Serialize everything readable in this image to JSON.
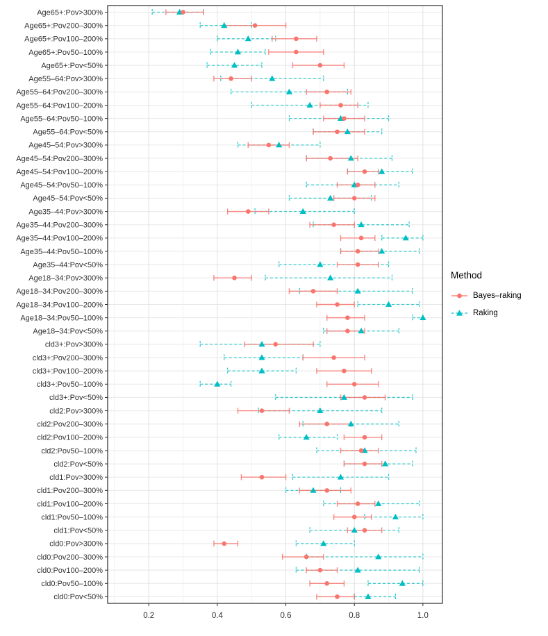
{
  "chart_data": {
    "type": "scatter",
    "subtype": "interval-dot-plot",
    "title": "",
    "xlabel": "",
    "ylabel": "",
    "x_ticks": [
      0.2,
      0.4,
      0.6,
      0.8,
      1.0
    ],
    "x_tick_labels": [
      "0.2",
      "0.4",
      "0.6",
      "0.8",
      "1.0"
    ],
    "x_minor_ticks": [
      0.1,
      0.3,
      0.5,
      0.7,
      0.9
    ],
    "xlim": [
      0.08,
      1.057
    ],
    "grid": true,
    "panel_border": true,
    "legend": {
      "title": "Method",
      "position": "right"
    },
    "series": [
      {
        "name": "Bayes–raking",
        "marker": "circle",
        "linestyle": "solid",
        "color": "#F8766D"
      },
      {
        "name": "Raking",
        "marker": "triangle",
        "linestyle": "dashed",
        "color": "#00BFC4"
      }
    ],
    "interval_format": "[estimate, lower, upper]",
    "rows": [
      {
        "label": "Age65+:Pov>300%",
        "bayes": [
          0.3,
          0.25,
          0.36
        ],
        "raking": [
          0.29,
          0.21,
          0.36
        ]
      },
      {
        "label": "Age65+:Pov200–300%",
        "bayes": [
          0.51,
          0.42,
          0.6
        ],
        "raking": [
          0.42,
          0.35,
          0.5
        ]
      },
      {
        "label": "Age65+:Pov100–200%",
        "bayes": [
          0.63,
          0.56,
          0.69
        ],
        "raking": [
          0.49,
          0.4,
          0.57
        ]
      },
      {
        "label": "Age65+:Pov50–100%",
        "bayes": [
          0.63,
          0.55,
          0.71
        ],
        "raking": [
          0.46,
          0.38,
          0.54
        ]
      },
      {
        "label": "Age65+:Pov<50%",
        "bayes": [
          0.7,
          0.62,
          0.77
        ],
        "raking": [
          0.45,
          0.37,
          0.53
        ]
      },
      {
        "label": "Age55–64:Pov>300%",
        "bayes": [
          0.44,
          0.39,
          0.5
        ],
        "raking": [
          0.56,
          0.41,
          0.71
        ]
      },
      {
        "label": "Age55–64:Pov200–300%",
        "bayes": [
          0.72,
          0.66,
          0.79
        ],
        "raking": [
          0.61,
          0.44,
          0.78
        ]
      },
      {
        "label": "Age55–64:Pov100–200%",
        "bayes": [
          0.76,
          0.7,
          0.81
        ],
        "raking": [
          0.67,
          0.5,
          0.84
        ]
      },
      {
        "label": "Age55–64:Pov50–100%",
        "bayes": [
          0.77,
          0.71,
          0.83
        ],
        "raking": [
          0.76,
          0.61,
          0.9
        ]
      },
      {
        "label": "Age55–64:Pov<50%",
        "bayes": [
          0.75,
          0.68,
          0.83
        ],
        "raking": [
          0.78,
          0.68,
          0.88
        ]
      },
      {
        "label": "Age45–54:Pov>300%",
        "bayes": [
          0.55,
          0.49,
          0.61
        ],
        "raking": [
          0.58,
          0.46,
          0.7
        ]
      },
      {
        "label": "Age45–54:Pov200–300%",
        "bayes": [
          0.73,
          0.66,
          0.81
        ],
        "raking": [
          0.79,
          0.66,
          0.91
        ]
      },
      {
        "label": "Age45–54:Pov100–200%",
        "bayes": [
          0.83,
          0.78,
          0.87
        ],
        "raking": [
          0.88,
          0.78,
          0.97
        ]
      },
      {
        "label": "Age45–54:Pov50–100%",
        "bayes": [
          0.81,
          0.75,
          0.86
        ],
        "raking": [
          0.8,
          0.66,
          0.93
        ]
      },
      {
        "label": "Age45–54:Pov<50%",
        "bayes": [
          0.8,
          0.74,
          0.86
        ],
        "raking": [
          0.73,
          0.61,
          0.85
        ]
      },
      {
        "label": "Age35–44:Pov>300%",
        "bayes": [
          0.49,
          0.43,
          0.55
        ],
        "raking": [
          0.65,
          0.51,
          0.8
        ]
      },
      {
        "label": "Age35–44:Pov200–300%",
        "bayes": [
          0.74,
          0.67,
          0.8
        ],
        "raking": [
          0.82,
          0.68,
          0.96
        ]
      },
      {
        "label": "Age35–44:Pov100–200%",
        "bayes": [
          0.82,
          0.76,
          0.86
        ],
        "raking": [
          0.95,
          0.88,
          1.0
        ]
      },
      {
        "label": "Age35–44:Pov50–100%",
        "bayes": [
          0.81,
          0.76,
          0.87
        ],
        "raking": [
          0.88,
          0.76,
          0.99
        ]
      },
      {
        "label": "Age35–44:Pov<50%",
        "bayes": [
          0.81,
          0.75,
          0.87
        ],
        "raking": [
          0.7,
          0.58,
          0.9
        ]
      },
      {
        "label": "Age18–34:Pov>300%",
        "bayes": [
          0.45,
          0.39,
          0.5
        ],
        "raking": [
          0.73,
          0.54,
          0.91
        ]
      },
      {
        "label": "Age18–34:Pov200–300%",
        "bayes": [
          0.68,
          0.61,
          0.75
        ],
        "raking": [
          0.81,
          0.64,
          0.97
        ]
      },
      {
        "label": "Age18–34:Pov100–200%",
        "bayes": [
          0.75,
          0.69,
          0.8
        ],
        "raking": [
          0.9,
          0.81,
          0.99
        ]
      },
      {
        "label": "Age18–34:Pov50–100%",
        "bayes": [
          0.78,
          0.72,
          0.83
        ],
        "raking": [
          1.0,
          0.97,
          1.0
        ]
      },
      {
        "label": "Age18–34:Pov<50%",
        "bayes": [
          0.78,
          0.72,
          0.83
        ],
        "raking": [
          0.82,
          0.71,
          0.93
        ]
      },
      {
        "label": "cld3+:Pov>300%",
        "bayes": [
          0.57,
          0.48,
          0.68
        ],
        "raking": [
          0.53,
          0.35,
          0.7
        ]
      },
      {
        "label": "cld3+:Pov200–300%",
        "bayes": [
          0.74,
          0.65,
          0.83
        ],
        "raking": [
          0.53,
          0.42,
          0.65
        ]
      },
      {
        "label": "cld3+:Pov100–200%",
        "bayes": [
          0.77,
          0.69,
          0.85
        ],
        "raking": [
          0.53,
          0.43,
          0.63
        ]
      },
      {
        "label": "cld3+:Pov50–100%",
        "bayes": [
          0.8,
          0.72,
          0.87
        ],
        "raking": [
          0.4,
          0.35,
          0.44
        ]
      },
      {
        "label": "cld3+:Pov<50%",
        "bayes": [
          0.83,
          0.76,
          0.89
        ],
        "raking": [
          0.77,
          0.57,
          0.97
        ]
      },
      {
        "label": "cld2:Pov>300%",
        "bayes": [
          0.53,
          0.46,
          0.61
        ],
        "raking": [
          0.7,
          0.52,
          0.88
        ]
      },
      {
        "label": "cld2:Pov200–300%",
        "bayes": [
          0.72,
          0.64,
          0.79
        ],
        "raking": [
          0.79,
          0.65,
          0.93
        ]
      },
      {
        "label": "cld2:Pov100–200%",
        "bayes": [
          0.83,
          0.77,
          0.88
        ],
        "raking": [
          0.66,
          0.58,
          0.75
        ]
      },
      {
        "label": "cld2:Pov50–100%",
        "bayes": [
          0.82,
          0.76,
          0.87
        ],
        "raking": [
          0.83,
          0.69,
          0.98
        ]
      },
      {
        "label": "cld2:Pov<50%",
        "bayes": [
          0.83,
          0.77,
          0.88
        ],
        "raking": [
          0.89,
          0.77,
          0.97
        ]
      },
      {
        "label": "cld1:Pov>300%",
        "bayes": [
          0.53,
          0.47,
          0.6
        ],
        "raking": [
          0.76,
          0.62,
          0.9
        ]
      },
      {
        "label": "cld1:Pov200–300%",
        "bayes": [
          0.72,
          0.64,
          0.79
        ],
        "raking": [
          0.68,
          0.6,
          0.76
        ]
      },
      {
        "label": "cld1:Pov100–200%",
        "bayes": [
          0.81,
          0.75,
          0.86
        ],
        "raking": [
          0.87,
          0.71,
          0.99
        ]
      },
      {
        "label": "cld1:Pov50–100%",
        "bayes": [
          0.8,
          0.74,
          0.85
        ],
        "raking": [
          0.92,
          0.83,
          1.0
        ]
      },
      {
        "label": "cld1:Pov<50%",
        "bayes": [
          0.83,
          0.78,
          0.88
        ],
        "raking": [
          0.8,
          0.67,
          0.93
        ]
      },
      {
        "label": "cld0:Pov>300%",
        "bayes": [
          0.42,
          0.39,
          0.46
        ],
        "raking": [
          0.71,
          0.63,
          0.8
        ]
      },
      {
        "label": "cld0:Pov200–300%",
        "bayes": [
          0.66,
          0.59,
          0.71
        ],
        "raking": [
          0.87,
          0.66,
          1.0
        ]
      },
      {
        "label": "cld0:Pov100–200%",
        "bayes": [
          0.7,
          0.66,
          0.75
        ],
        "raking": [
          0.81,
          0.63,
          0.99
        ]
      },
      {
        "label": "cld0:Pov50–100%",
        "bayes": [
          0.72,
          0.67,
          0.77
        ],
        "raking": [
          0.94,
          0.84,
          1.0
        ]
      },
      {
        "label": "cld0:Pov<50%",
        "bayes": [
          0.75,
          0.69,
          0.8
        ],
        "raking": [
          0.84,
          0.8,
          0.92
        ]
      }
    ],
    "colors": {
      "bayes": "#F8766D",
      "raking": "#00BFC4",
      "grid_major": "#E2E2E2",
      "grid_minor": "#F0F0F0",
      "grid_row": "#E8E8E8",
      "panel_border": "#2B2B2B",
      "axis_text": "#303030"
    }
  }
}
